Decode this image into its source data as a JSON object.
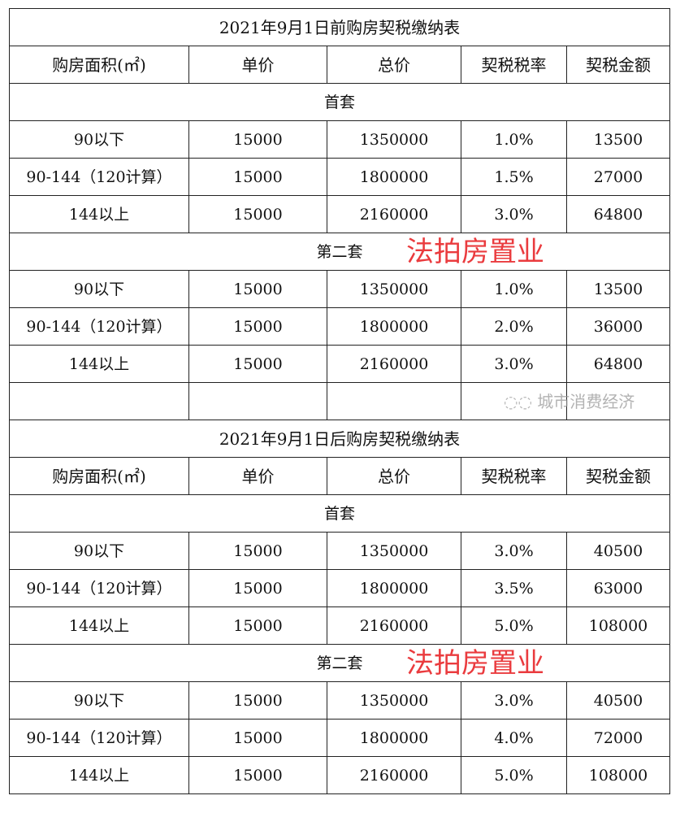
{
  "tables": [
    {
      "title": "2021年9月1日前购房契税缴纳表",
      "headers": [
        "购房面积(㎡)",
        "单价",
        "总价",
        "契税税率",
        "契税金额"
      ],
      "sections": [
        {
          "label": "首套",
          "rows": [
            [
              "90以下",
              "15000",
              "1350000",
              "1.0%",
              "13500"
            ],
            [
              "90-144（120计算）",
              "15000",
              "1800000",
              "1.5%",
              "27000"
            ],
            [
              "144以上",
              "15000",
              "2160000",
              "3.0%",
              "64800"
            ]
          ]
        },
        {
          "label": "第二套",
          "rows": [
            [
              "90以下",
              "15000",
              "1350000",
              "1.0%",
              "13500"
            ],
            [
              "90-144（120计算）",
              "15000",
              "1800000",
              "2.0%",
              "36000"
            ],
            [
              "144以上",
              "15000",
              "2160000",
              "3.0%",
              "64800"
            ]
          ]
        }
      ]
    },
    {
      "title": "2021年9月1日后购房契税缴纳表",
      "headers": [
        "购房面积(㎡)",
        "单价",
        "总价",
        "契税税率",
        "契税金额"
      ],
      "sections": [
        {
          "label": "首套",
          "rows": [
            [
              "90以下",
              "15000",
              "1350000",
              "3.0%",
              "40500"
            ],
            [
              "90-144（120计算）",
              "15000",
              "1800000",
              "3.5%",
              "63000"
            ],
            [
              "144以上",
              "15000",
              "2160000",
              "5.0%",
              "108000"
            ]
          ]
        },
        {
          "label": "第二套",
          "rows": [
            [
              "90以下",
              "15000",
              "1350000",
              "3.0%",
              "40500"
            ],
            [
              "90-144（120计算）",
              "15000",
              "1800000",
              "4.0%",
              "72000"
            ],
            [
              "144以上",
              "15000",
              "2160000",
              "5.0%",
              "108000"
            ]
          ]
        }
      ]
    }
  ],
  "watermark": "法拍房置业",
  "wechat_watermark": "城市消费经济",
  "watermark_color": "#e8262a"
}
